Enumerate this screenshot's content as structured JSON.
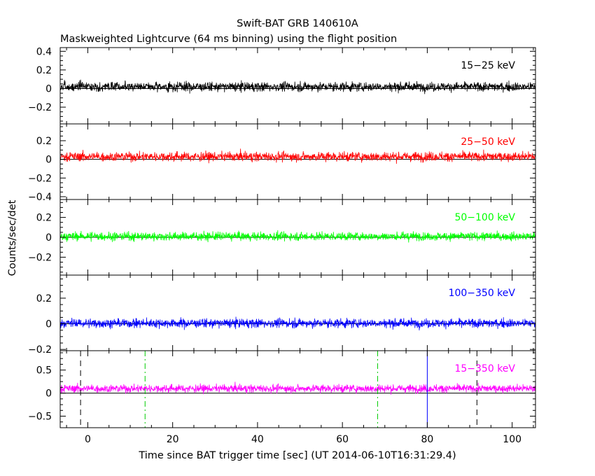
{
  "chart_data": {
    "type": "line",
    "title": "Swift-BAT GRB 140610A",
    "subtitle": "Maskweighted Lightcurve (64 ms binning) using the flight position",
    "xlabel": "Time since BAT trigger time [sec] (UT 2014-06-10T16:31:29.4)",
    "ylabel": "Counts/sec/det",
    "xlim": [
      -6.5,
      105.5
    ],
    "xticks": [
      0,
      20,
      40,
      60,
      80,
      100
    ],
    "bin_width_sec": 0.064,
    "grid": false,
    "panels": [
      {
        "name": "15-25 keV",
        "label": "15−25 keV",
        "color": "#000000",
        "ylim": [
          -0.38,
          0.44
        ],
        "yticks": [
          -0.2,
          0,
          0.2,
          0.4
        ],
        "yticklabels": [
          "−0.2",
          "0",
          "0.2",
          "0.4"
        ],
        "level": 0.02,
        "noise": 0.035
      },
      {
        "name": "25-50 keV",
        "label": "25−50 keV",
        "color": "#ff0000",
        "ylim": [
          -0.43,
          0.38
        ],
        "yticks": [
          -0.4,
          -0.2,
          0,
          0.2
        ],
        "yticklabels": [
          "−0.4",
          "−0.2",
          "0",
          "0.2"
        ],
        "level": 0.03,
        "noise": 0.035
      },
      {
        "name": "50-100 keV",
        "label": "50−100 keV",
        "color": "#00ff00",
        "ylim": [
          -0.38,
          0.38
        ],
        "yticks": [
          -0.2,
          0,
          0.2
        ],
        "yticklabels": [
          "−0.2",
          "0",
          "0.2"
        ],
        "level": 0.01,
        "noise": 0.03
      },
      {
        "name": "100-350 keV",
        "label": "100−350 keV",
        "color": "#0000ff",
        "ylim": [
          -0.21,
          0.38
        ],
        "yticks": [
          -0.2,
          0,
          0.2
        ],
        "yticklabels": [
          "−0.2",
          "0",
          "0.2"
        ],
        "level": 0.005,
        "noise": 0.025
      },
      {
        "name": "15-350 keV",
        "label": "15−350 keV",
        "color": "#ff00ff",
        "ylim": [
          -0.75,
          0.92
        ],
        "yticks": [
          -0.5,
          0,
          0.5
        ],
        "yticklabels": [
          "−0.5",
          "0",
          "0.5"
        ],
        "level": 0.1,
        "noise": 0.06,
        "markers": [
          {
            "x": -1.7,
            "color": "#000000",
            "style": "dashed"
          },
          {
            "x": 13.5,
            "color": "#00cc00",
            "style": "dashdot"
          },
          {
            "x": 68.3,
            "color": "#00cc00",
            "style": "dashdot"
          },
          {
            "x": 80.0,
            "color": "#0000ff",
            "style": "solid"
          },
          {
            "x": 91.7,
            "color": "#000000",
            "style": "dashed"
          }
        ]
      }
    ]
  }
}
